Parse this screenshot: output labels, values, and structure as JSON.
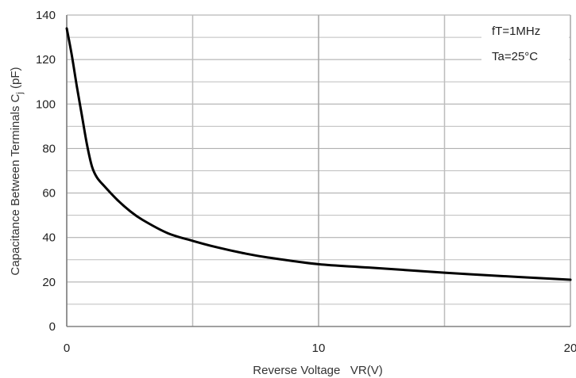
{
  "chart_data": {
    "type": "line",
    "title": "",
    "xlabel": "Reverse Voltage   VR(V)",
    "ylabel_main": "Capacitance Between Terminals C",
    "ylabel_sub": "j",
    "ylabel_unit": " (pF)",
    "xlim": [
      0,
      20
    ],
    "ylim": [
      0,
      140
    ],
    "x_ticks": [
      0,
      10,
      20
    ],
    "x_tick_labels": [
      "0",
      "10",
      "20"
    ],
    "x_minor_grid": [
      5,
      15
    ],
    "y_ticks": [
      0,
      20,
      40,
      60,
      80,
      100,
      120,
      140
    ],
    "y_tick_labels": [
      "0",
      "20",
      "40",
      "60",
      "80",
      "100",
      "120",
      "140"
    ],
    "y_minor_grid": [
      10,
      30,
      50,
      70,
      90,
      110,
      130
    ],
    "grid": true,
    "annotations": [
      "fT=1MHz",
      "Ta=25°C"
    ],
    "series": [
      {
        "color": "#000000",
        "x": [
          0,
          0.2,
          0.4,
          0.6,
          0.8,
          1.0,
          1.2,
          1.5,
          2.0,
          2.5,
          3.0,
          4.0,
          5.0,
          6.0,
          7.0,
          8.0,
          10.0,
          12.0,
          15.0,
          18.0,
          20.0
        ],
        "y": [
          134,
          122,
          108,
          95,
          82,
          72,
          67,
          63,
          57,
          52,
          48,
          42,
          38.5,
          35.5,
          33,
          31,
          28,
          26.5,
          24.2,
          22.2,
          21
        ]
      }
    ]
  }
}
